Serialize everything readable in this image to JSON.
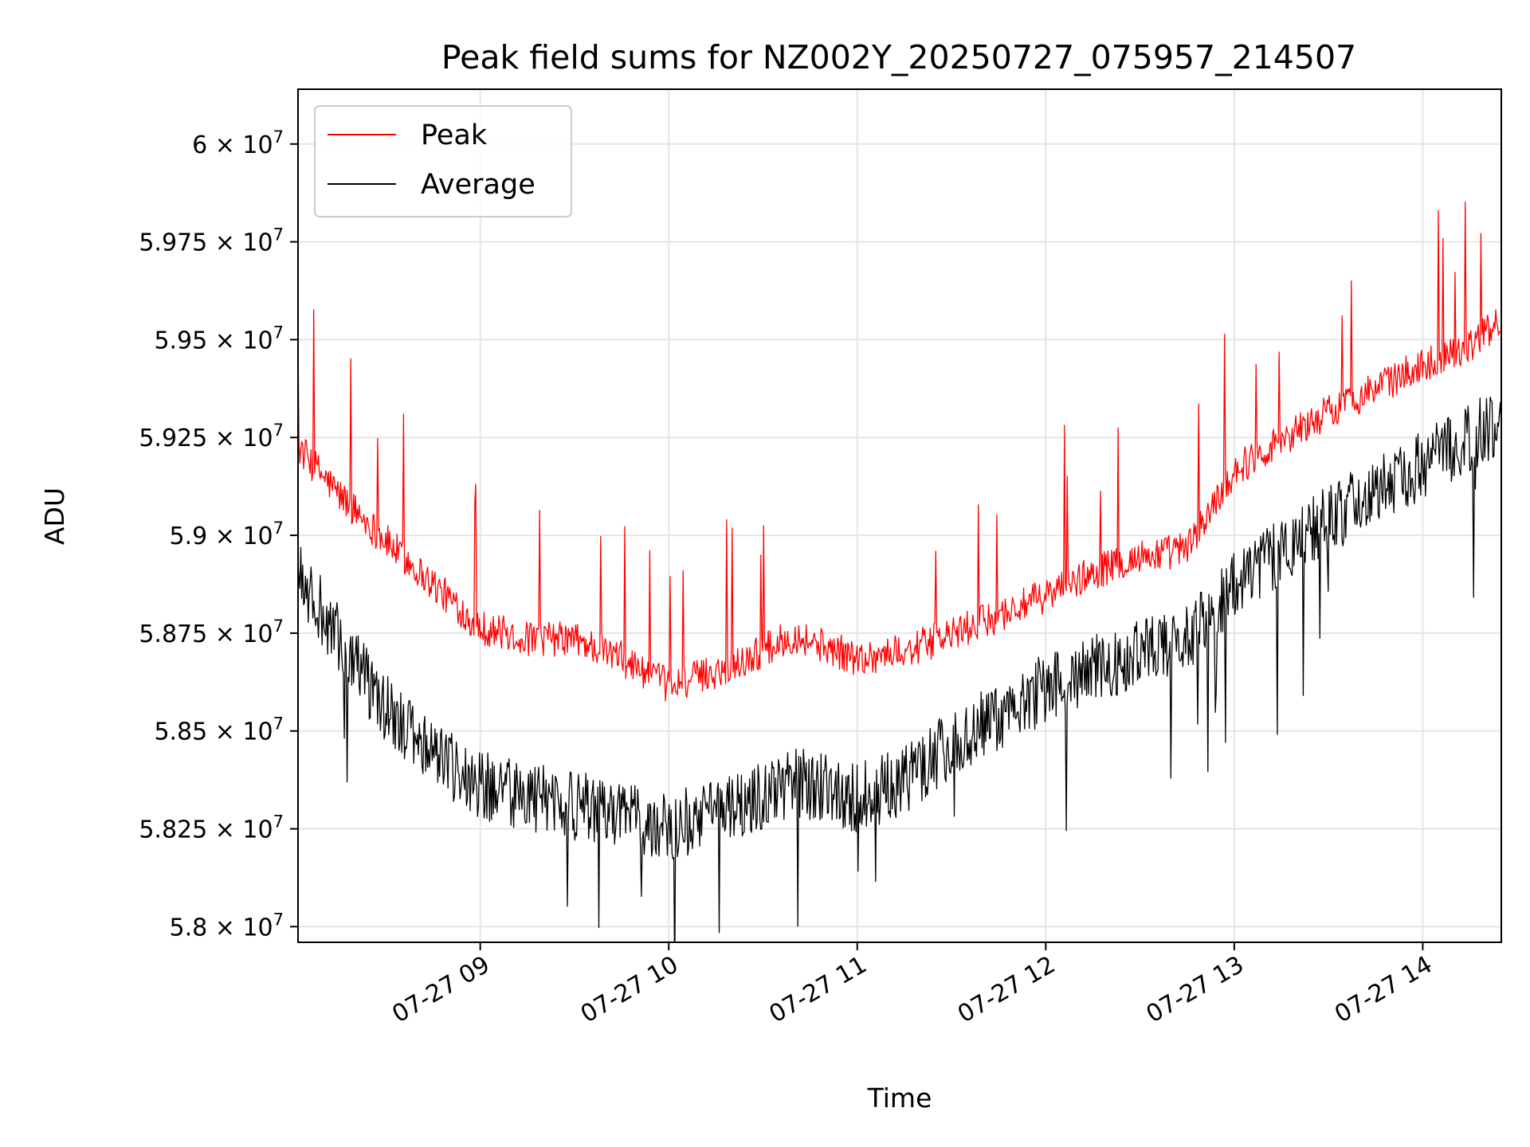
{
  "chart_data": {
    "type": "line",
    "title": "Peak field sums for NZ002Y_20250727_075957_214507",
    "xlabel": "Time",
    "ylabel": "ADU",
    "xlim": [
      "2025-07-27 08:02",
      "2025-07-27 14:25"
    ],
    "ylim": [
      57960000,
      60140000
    ],
    "x_ticks": [
      {
        "value": "2025-07-27 09:00",
        "label": "07-27 09"
      },
      {
        "value": "2025-07-27 10:00",
        "label": "07-27 10"
      },
      {
        "value": "2025-07-27 11:00",
        "label": "07-27 11"
      },
      {
        "value": "2025-07-27 12:00",
        "label": "07-27 12"
      },
      {
        "value": "2025-07-27 13:00",
        "label": "07-27 13"
      },
      {
        "value": "2025-07-27 14:00",
        "label": "07-27 14"
      }
    ],
    "y_ticks": [
      {
        "value": 58000000,
        "mant": "5.8"
      },
      {
        "value": 58250000,
        "mant": "5.825"
      },
      {
        "value": 58500000,
        "mant": "5.85"
      },
      {
        "value": 58750000,
        "mant": "5.875"
      },
      {
        "value": 59000000,
        "mant": "5.9"
      },
      {
        "value": 59250000,
        "mant": "5.925"
      },
      {
        "value": 59500000,
        "mant": "5.95"
      },
      {
        "value": 59750000,
        "mant": "5.975"
      },
      {
        "value": 60000000,
        "mant": "6"
      }
    ],
    "y_tick_base": "10",
    "y_tick_exp": "7",
    "y_tick_times": "×",
    "grid": true,
    "legend_position": "top-left",
    "series": [
      {
        "name": "Peak",
        "color": "#ff0000",
        "x": [
          "2025-07-27 08:02",
          "2025-07-27 08:15",
          "2025-07-27 08:30",
          "2025-07-27 08:45",
          "2025-07-27 09:00",
          "2025-07-27 09:15",
          "2025-07-27 09:30",
          "2025-07-27 09:45",
          "2025-07-27 10:00",
          "2025-07-27 10:20",
          "2025-07-27 10:40",
          "2025-07-27 11:00",
          "2025-07-27 11:15",
          "2025-07-27 11:30",
          "2025-07-27 11:45",
          "2025-07-27 12:00",
          "2025-07-27 12:15",
          "2025-07-27 12:30",
          "2025-07-27 12:45",
          "2025-07-27 13:00",
          "2025-07-27 13:15",
          "2025-07-27 13:30",
          "2025-07-27 13:45",
          "2025-07-27 14:00",
          "2025-07-27 14:15",
          "2025-07-27 14:25"
        ],
        "values": [
          59180000,
          59060000,
          58940000,
          58830000,
          58720000,
          58690000,
          58690000,
          58640000,
          58570000,
          58620000,
          58700000,
          58640000,
          58660000,
          58700000,
          58750000,
          58800000,
          58860000,
          58900000,
          58920000,
          59120000,
          59200000,
          59270000,
          59330000,
          59390000,
          59440000,
          59500000
        ]
      },
      {
        "name": "Average",
        "color": "#000000",
        "x": [
          "2025-07-27 08:02",
          "2025-07-27 08:15",
          "2025-07-27 08:30",
          "2025-07-27 08:45",
          "2025-07-27 09:00",
          "2025-07-27 09:15",
          "2025-07-27 09:30",
          "2025-07-27 09:45",
          "2025-07-27 10:00",
          "2025-07-27 10:20",
          "2025-07-27 10:40",
          "2025-07-27 11:00",
          "2025-07-27 11:15",
          "2025-07-27 11:30",
          "2025-07-27 11:45",
          "2025-07-27 12:00",
          "2025-07-27 12:15",
          "2025-07-27 12:30",
          "2025-07-27 12:45",
          "2025-07-27 13:00",
          "2025-07-27 13:15",
          "2025-07-27 13:30",
          "2025-07-27 13:45",
          "2025-07-27 14:00",
          "2025-07-27 14:15",
          "2025-07-27 14:25"
        ],
        "values": [
          59000000,
          58820000,
          58650000,
          58530000,
          58450000,
          58420000,
          58400000,
          58370000,
          58350000,
          58390000,
          58460000,
          58420000,
          58460000,
          58560000,
          58630000,
          58700000,
          58750000,
          58790000,
          58820000,
          58960000,
          59050000,
          59130000,
          59200000,
          59270000,
          59340000,
          59390000
        ]
      }
    ]
  }
}
